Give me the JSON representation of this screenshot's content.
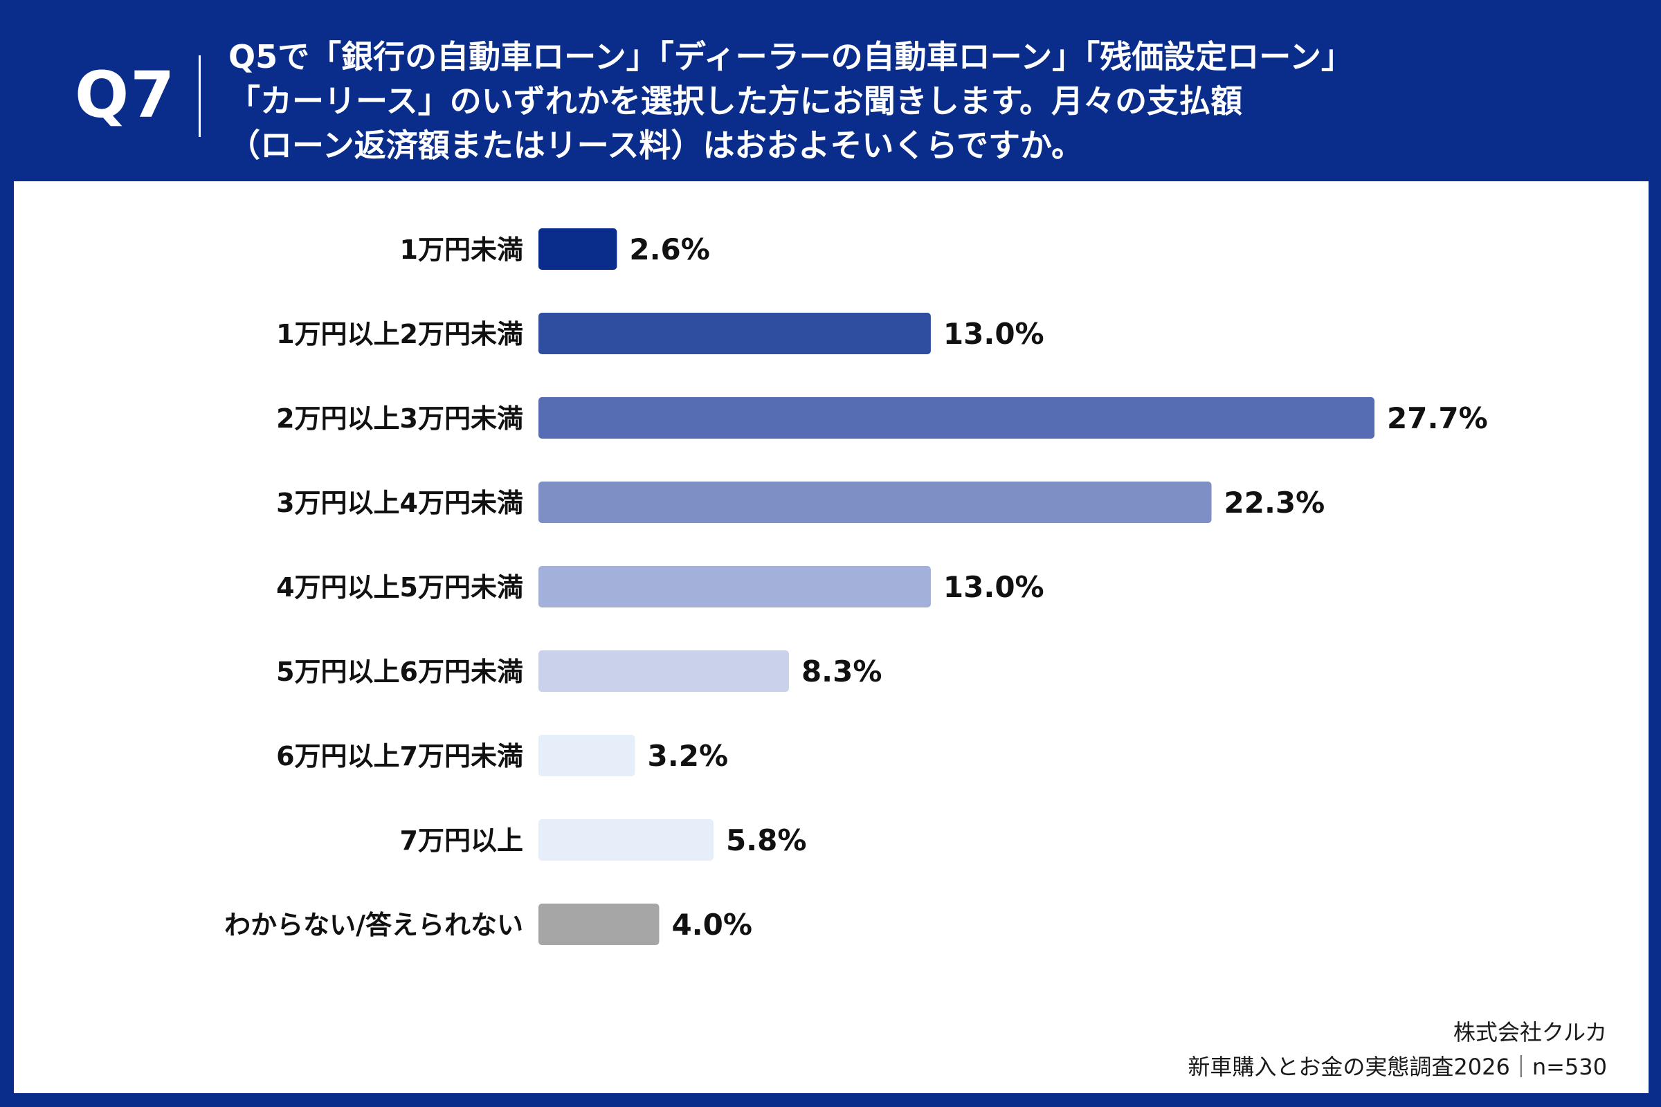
{
  "question": {
    "number": "Q7",
    "lines": [
      "Q5で「銀行の自動車ローン」「ディーラーの自動車ローン」「残価設定ローン」",
      "「カーリース」のいずれかを選択した方にお聞きします。月々の支払額",
      "（ローン返済額またはリース料）はおおよそいくらですか。"
    ]
  },
  "chart_data": {
    "type": "bar",
    "orientation": "horizontal",
    "title": "",
    "xlabel": "",
    "ylabel": "",
    "xlim": [
      0,
      30
    ],
    "grid": false,
    "categories": [
      "1万円未満",
      "1万円以上2万円未満",
      "2万円以上3万円未満",
      "3万円以上4万円未満",
      "4万円以上5万円未満",
      "5万円以上6万円未満",
      "6万円以上7万円未満",
      "7万円以上",
      "わからない/答えられない"
    ],
    "values": [
      2.6,
      13.0,
      27.7,
      22.3,
      13.0,
      8.3,
      3.2,
      5.8,
      4.0
    ],
    "value_labels": [
      "2.6%",
      "13.0%",
      "27.7%",
      "22.3%",
      "13.0%",
      "8.3%",
      "3.2%",
      "5.8%",
      "4.0%"
    ],
    "colors": [
      "#0a2d8c",
      "#2f4e9f",
      "#566db3",
      "#7d8fc5",
      "#a3b0d9",
      "#c9d2ea",
      "#e6eef9",
      "#e6eef9",
      "#a6a6a6"
    ]
  },
  "footer": {
    "company": "株式会社クルカ",
    "survey": "新車購入とお金の実態調査2026｜n=530"
  }
}
